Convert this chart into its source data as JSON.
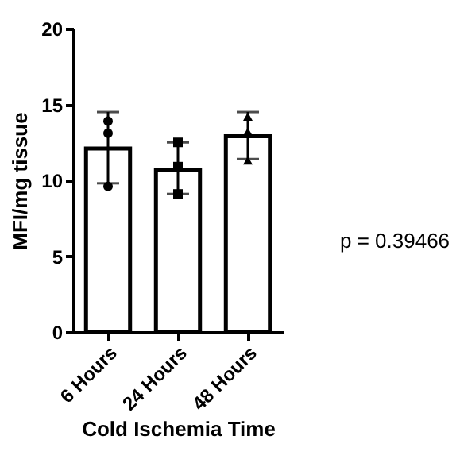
{
  "chart_data": {
    "type": "bar",
    "xlabel": "Cold Ischemia Time",
    "ylabel": "MFI/mg tissue",
    "categories": [
      "6 Hours",
      "24 Hours",
      "48 Hours"
    ],
    "series": [
      {
        "color": "#ffffff",
        "values": [
          12.1,
          10.7,
          12.9
        ],
        "errors": [
          [
            9.8,
            14.5
          ],
          [
            9.1,
            12.5
          ],
          [
            11.4,
            14.5
          ]
        ]
      },
      {
        "type": "scatter",
        "color": "#000000",
        "marker": "circle",
        "x": [
          "6 Hours",
          "6 Hours",
          "6 Hours"
        ],
        "values": [
          13.9,
          13.1,
          9.6
        ]
      },
      {
        "type": "scatter",
        "color": "#000000",
        "marker": "square",
        "x": [
          "24 Hours",
          "24 Hours",
          "24 Hours"
        ],
        "values": [
          12.5,
          10.9,
          9.1
        ]
      },
      {
        "type": "scatter",
        "color": "#000000",
        "marker": "triangle",
        "x": [
          "48 Hours",
          "48 Hours",
          "48 Hours"
        ],
        "values": [
          14.2,
          13.2,
          11.3
        ]
      }
    ],
    "ylim": [
      0,
      20
    ],
    "yticks": [
      0,
      5,
      10,
      15,
      20
    ],
    "grid": false,
    "annotations": [
      "p = 0.39466"
    ]
  }
}
